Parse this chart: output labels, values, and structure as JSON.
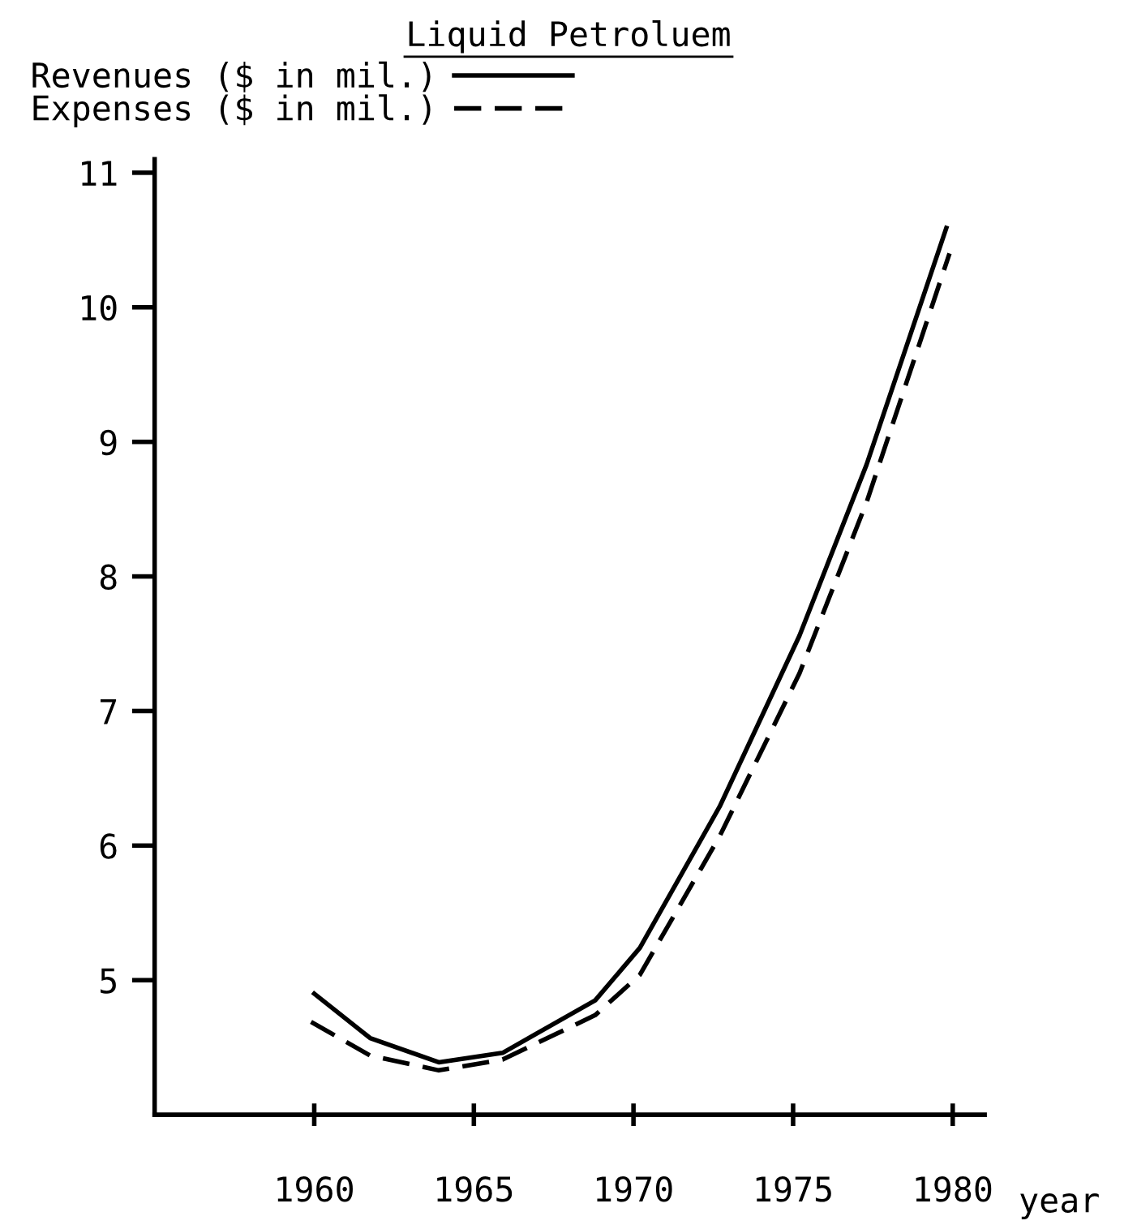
{
  "chart_data": {
    "type": "line",
    "title": "Liquid Petroluem",
    "xlabel": "year",
    "legend": "top left",
    "grid": false,
    "marker": "none",
    "xlim": [
      1955,
      1981
    ],
    "xticks": [
      1960,
      1965,
      1970,
      1975,
      1980
    ],
    "ylim": [
      4,
      11.1
    ],
    "yticks": [
      5,
      6,
      7,
      8,
      9,
      10,
      11
    ],
    "series": [
      {
        "name": "Revenues ($ in mil.)",
        "color": "#000000",
        "line_style": "solid",
        "x": [
          1960,
          1961.75,
          1963.9,
          1965.9,
          1968.8,
          1970.2,
          1972.7,
          1975.2,
          1977.3,
          1979.8
        ],
        "values": [
          4.9,
          4.57,
          4.39,
          4.46,
          4.85,
          5.24,
          6.29,
          7.56,
          8.83,
          10.59
        ]
      },
      {
        "name": "Expenses ($ in mil.)",
        "color": "#000000",
        "line_style": "dashed",
        "x": [
          1959.9,
          1961.75,
          1963.9,
          1965.9,
          1968.8,
          1970.2,
          1972.7,
          1975.2,
          1977.3,
          1979.9
        ],
        "values": [
          4.69,
          4.44,
          4.33,
          4.41,
          4.74,
          5.04,
          6.07,
          7.28,
          8.55,
          10.4
        ]
      }
    ]
  }
}
